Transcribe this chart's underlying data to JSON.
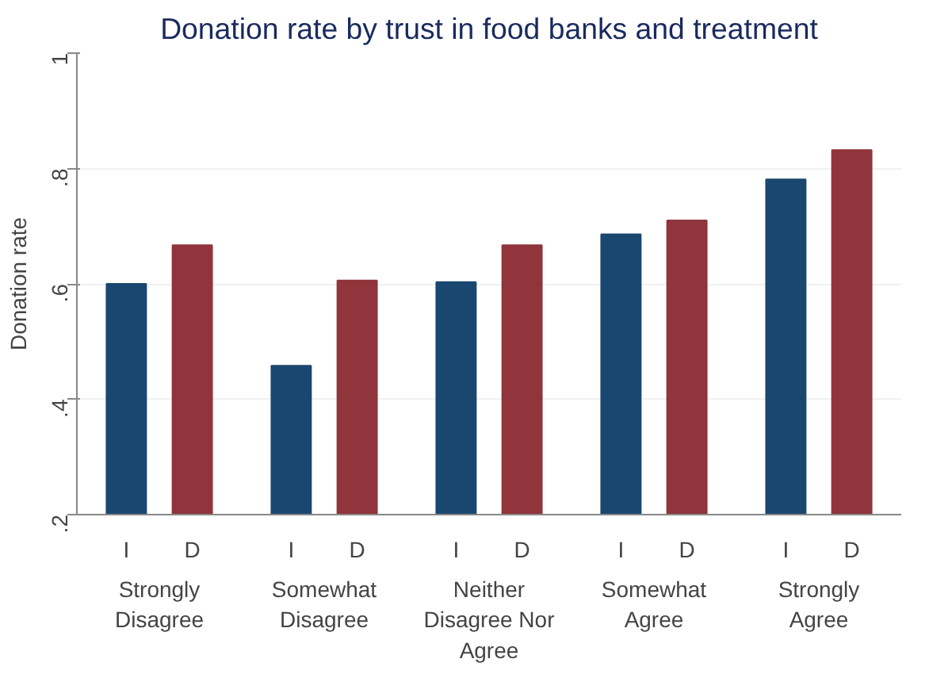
{
  "chart_data": {
    "type": "bar",
    "title": "Donation rate by trust in food banks and treatment",
    "ylabel": "Donation rate",
    "categories": [
      "Strongly Disagree",
      "Somewhat Disagree",
      "Neither Disagree Nor Agree",
      "Somewhat Agree",
      "Strongly Agree"
    ],
    "series": [
      {
        "name": "I",
        "color": "#1a476f",
        "values": [
          0.6,
          0.458,
          0.603,
          0.686,
          0.781
        ]
      },
      {
        "name": "D",
        "color": "#90353b",
        "values": [
          0.667,
          0.606,
          0.667,
          0.71,
          0.832
        ]
      }
    ],
    "ylim": [
      0.2,
      1
    ],
    "yticks": [
      {
        "value": 0.2,
        "label": ".2"
      },
      {
        "value": 0.4,
        "label": ".4"
      },
      {
        "value": 0.6,
        "label": ".6"
      },
      {
        "value": 0.8,
        "label": ".8"
      },
      {
        "value": 1,
        "label": "1"
      }
    ],
    "grid": "y"
  }
}
